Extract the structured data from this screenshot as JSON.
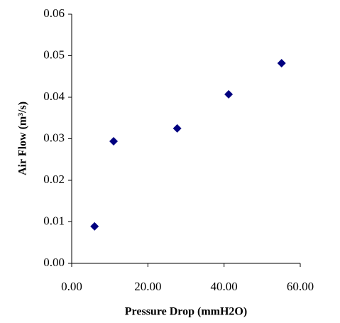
{
  "chart_data": {
    "type": "scatter",
    "x_label": "Pressure Drop (mmH2O)",
    "y_label": "Air Flow (m³/s)",
    "x": [
      6,
      11,
      27.7,
      41.2,
      55.1
    ],
    "values": [
      0.0089,
      0.0294,
      0.0325,
      0.0407,
      0.0482
    ],
    "color": "#000080",
    "xlim": [
      0,
      60
    ],
    "xticks": [
      {
        "value": 0,
        "label": "0.00"
      },
      {
        "value": 20,
        "label": "20.00"
      },
      {
        "value": 40,
        "label": "40.00"
      },
      {
        "value": 60,
        "label": "60.00"
      }
    ],
    "ylim": [
      0,
      0.06
    ],
    "yticks": [
      {
        "value": 0,
        "label": "0.00"
      },
      {
        "value": 0.01,
        "label": "0.01"
      },
      {
        "value": 0.02,
        "label": "0.02"
      },
      {
        "value": 0.03,
        "label": "0.03"
      },
      {
        "value": 0.04,
        "label": "0.04"
      },
      {
        "value": 0.05,
        "label": "0.05"
      },
      {
        "value": 0.06,
        "label": "0.06"
      }
    ],
    "grid": false
  }
}
